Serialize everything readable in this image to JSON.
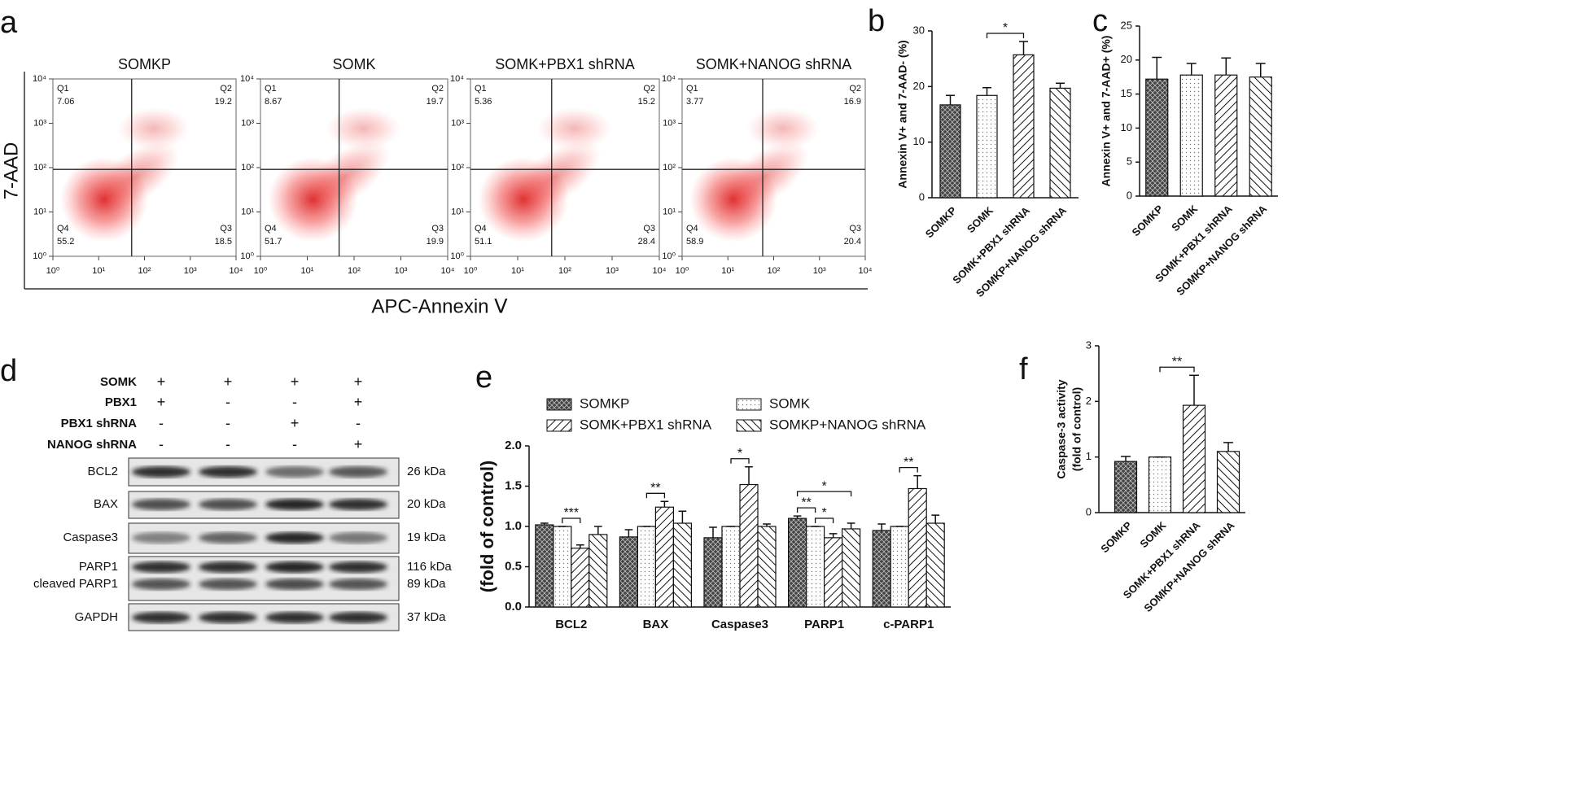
{
  "panel_labels": [
    "a",
    "b",
    "c",
    "d",
    "e",
    "f"
  ],
  "flow": {
    "y_label": "7-AAD",
    "x_label": "APC-Annexin Ⅴ",
    "scale": "log",
    "xlim": [
      1,
      10000
    ],
    "ylim": [
      1,
      10000
    ],
    "ticks": [
      {
        "value": 1,
        "label": "10⁰"
      },
      {
        "value": 10,
        "label": "10¹"
      },
      {
        "value": 100,
        "label": "10²"
      },
      {
        "value": 1000,
        "label": "10³"
      },
      {
        "value": 10000,
        "label": "10⁴"
      }
    ],
    "quadrant_names": [
      "Q1",
      "Q2",
      "Q3",
      "Q4"
    ],
    "plots": [
      {
        "title": "SOMKP",
        "quadrants": [
          7.06,
          19.2,
          18.5,
          55.2
        ]
      },
      {
        "title": "SOMK",
        "quadrants": [
          8.67,
          19.7,
          19.9,
          51.7
        ]
      },
      {
        "title": "SOMK+PBX1 shRNA",
        "quadrants": [
          5.36,
          15.2,
          28.4,
          51.1
        ]
      },
      {
        "title": "SOMK+NANOG shRNA",
        "quadrants": [
          3.77,
          16.9,
          20.4,
          58.9
        ]
      }
    ]
  },
  "blot": {
    "conditions": [
      {
        "name": "SOMK",
        "lanes": [
          "+",
          "+",
          "+",
          "+"
        ]
      },
      {
        "name": "PBX1",
        "lanes": [
          "+",
          "-",
          "-",
          "+"
        ]
      },
      {
        "name": "PBX1 shRNA",
        "lanes": [
          "-",
          "-",
          "+",
          "-"
        ]
      },
      {
        "name": "NANOG shRNA",
        "lanes": [
          "-",
          "-",
          "-",
          "+"
        ]
      }
    ],
    "bands": [
      {
        "labels": [
          "BCL2"
        ],
        "sizes": [
          "26 kDa"
        ]
      },
      {
        "labels": [
          "BAX"
        ],
        "sizes": [
          "20 kDa"
        ]
      },
      {
        "labels": [
          "Caspase3"
        ],
        "sizes": [
          "19 kDa"
        ]
      },
      {
        "labels": [
          "PARP1",
          "cleaved PARP1"
        ],
        "sizes": [
          "116 kDa",
          "89 kDa"
        ]
      },
      {
        "labels": [
          "GAPDH"
        ],
        "sizes": [
          "37 kDa"
        ]
      }
    ]
  },
  "chart_data": [
    {
      "type": "bar",
      "y_label": [
        "Annexin V+ and 7-AAD- (%)"
      ],
      "categories": [
        "SOMKP",
        "SOMK",
        "SOMK+PBX1 shRNA",
        "SOMKP+NANOG shRNA"
      ],
      "values": [
        16.7,
        18.4,
        25.7,
        19.7
      ],
      "errors": [
        1.7,
        1.4,
        2.4,
        0.9
      ],
      "patterns": [
        "crosshatch",
        "dots",
        "hatch",
        "backhatch"
      ],
      "ylim": [
        0,
        30
      ],
      "yticks": [
        0,
        10,
        20,
        30
      ],
      "annotations": [
        {
          "text": "*",
          "from": 1,
          "to": 2
        }
      ]
    },
    {
      "type": "bar",
      "y_label": [
        "Annexin V+ and 7-AAD+ (%)"
      ],
      "categories": [
        "SOMKP",
        "SOMK",
        "SOMK+PBX1 shRNA",
        "SOMKP+NANOG shRNA"
      ],
      "values": [
        17.2,
        17.8,
        17.8,
        17.5
      ],
      "errors": [
        3.2,
        1.7,
        2.5,
        2.0
      ],
      "patterns": [
        "crosshatch",
        "dots",
        "hatch",
        "backhatch"
      ],
      "ylim": [
        0,
        25
      ],
      "yticks": [
        0,
        5,
        10,
        15,
        20,
        25
      ],
      "annotations": []
    },
    {
      "type": "bar",
      "y_label": [
        "(fold of control)"
      ],
      "categories": [
        "BCL2",
        "BAX",
        "Caspase3",
        "PARP1",
        "c-PARP1"
      ],
      "series": [
        {
          "name": "SOMKP",
          "pattern": "crosshatch",
          "values": [
            1.02,
            0.87,
            0.86,
            1.1,
            0.95
          ],
          "errors": [
            0.02,
            0.09,
            0.13,
            0.03,
            0.08
          ]
        },
        {
          "name": "SOMK",
          "pattern": "dots",
          "values": [
            1,
            1,
            1,
            1,
            1
          ],
          "errors": [
            0,
            0,
            0,
            0,
            0
          ]
        },
        {
          "name": "SOMK+PBX1 shRNA",
          "pattern": "hatch",
          "values": [
            0.73,
            1.24,
            1.52,
            0.86,
            1.47
          ],
          "errors": [
            0.04,
            0.07,
            0.22,
            0.05,
            0.16
          ]
        },
        {
          "name": "SOMKP+NANOG shRNA",
          "pattern": "backhatch",
          "values": [
            0.9,
            1.04,
            1,
            0.97,
            1.04
          ],
          "errors": [
            0.1,
            0.15,
            0.03,
            0.07,
            0.1
          ]
        }
      ],
      "ylim": [
        0,
        2
      ],
      "yticks": [
        {
          "value": 0,
          "label": "0.0"
        },
        0.5,
        {
          "value": 1,
          "label": "1.0"
        },
        1.5,
        {
          "value": 2,
          "label": "2.0"
        }
      ],
      "annotations": [
        {
          "text": "***",
          "category": 0,
          "from": 1,
          "to": 2
        },
        {
          "text": "**",
          "category": 1,
          "from": 1,
          "to": 2
        },
        {
          "text": "*",
          "category": 2,
          "from": 1,
          "to": 2
        },
        {
          "text": "**",
          "category": 3,
          "from": 0,
          "to": 1
        },
        {
          "text": "*",
          "category": 3,
          "from": 1,
          "to": 2
        },
        {
          "text": "*",
          "category": 3,
          "from": 0,
          "to": 3
        },
        {
          "text": "**",
          "category": 4,
          "from": 1,
          "to": 2
        }
      ]
    },
    {
      "type": "bar",
      "y_label": [
        "Caspase-3 activity",
        "(fold of control)"
      ],
      "categories": [
        "SOMKP",
        "SOMK",
        "SOMK+PBX1 shRNA",
        "SOMKP+NANOG shRNA"
      ],
      "values": [
        0.92,
        1,
        1.93,
        1.1
      ],
      "errors": [
        0.09,
        0,
        0.54,
        0.16
      ],
      "patterns": [
        "crosshatch",
        "dots",
        "hatch",
        "backhatch"
      ],
      "ylim": [
        0,
        3
      ],
      "yticks": [
        0,
        1,
        2,
        3
      ],
      "annotations": [
        {
          "text": "**",
          "from": 1,
          "to": 2
        }
      ]
    }
  ]
}
